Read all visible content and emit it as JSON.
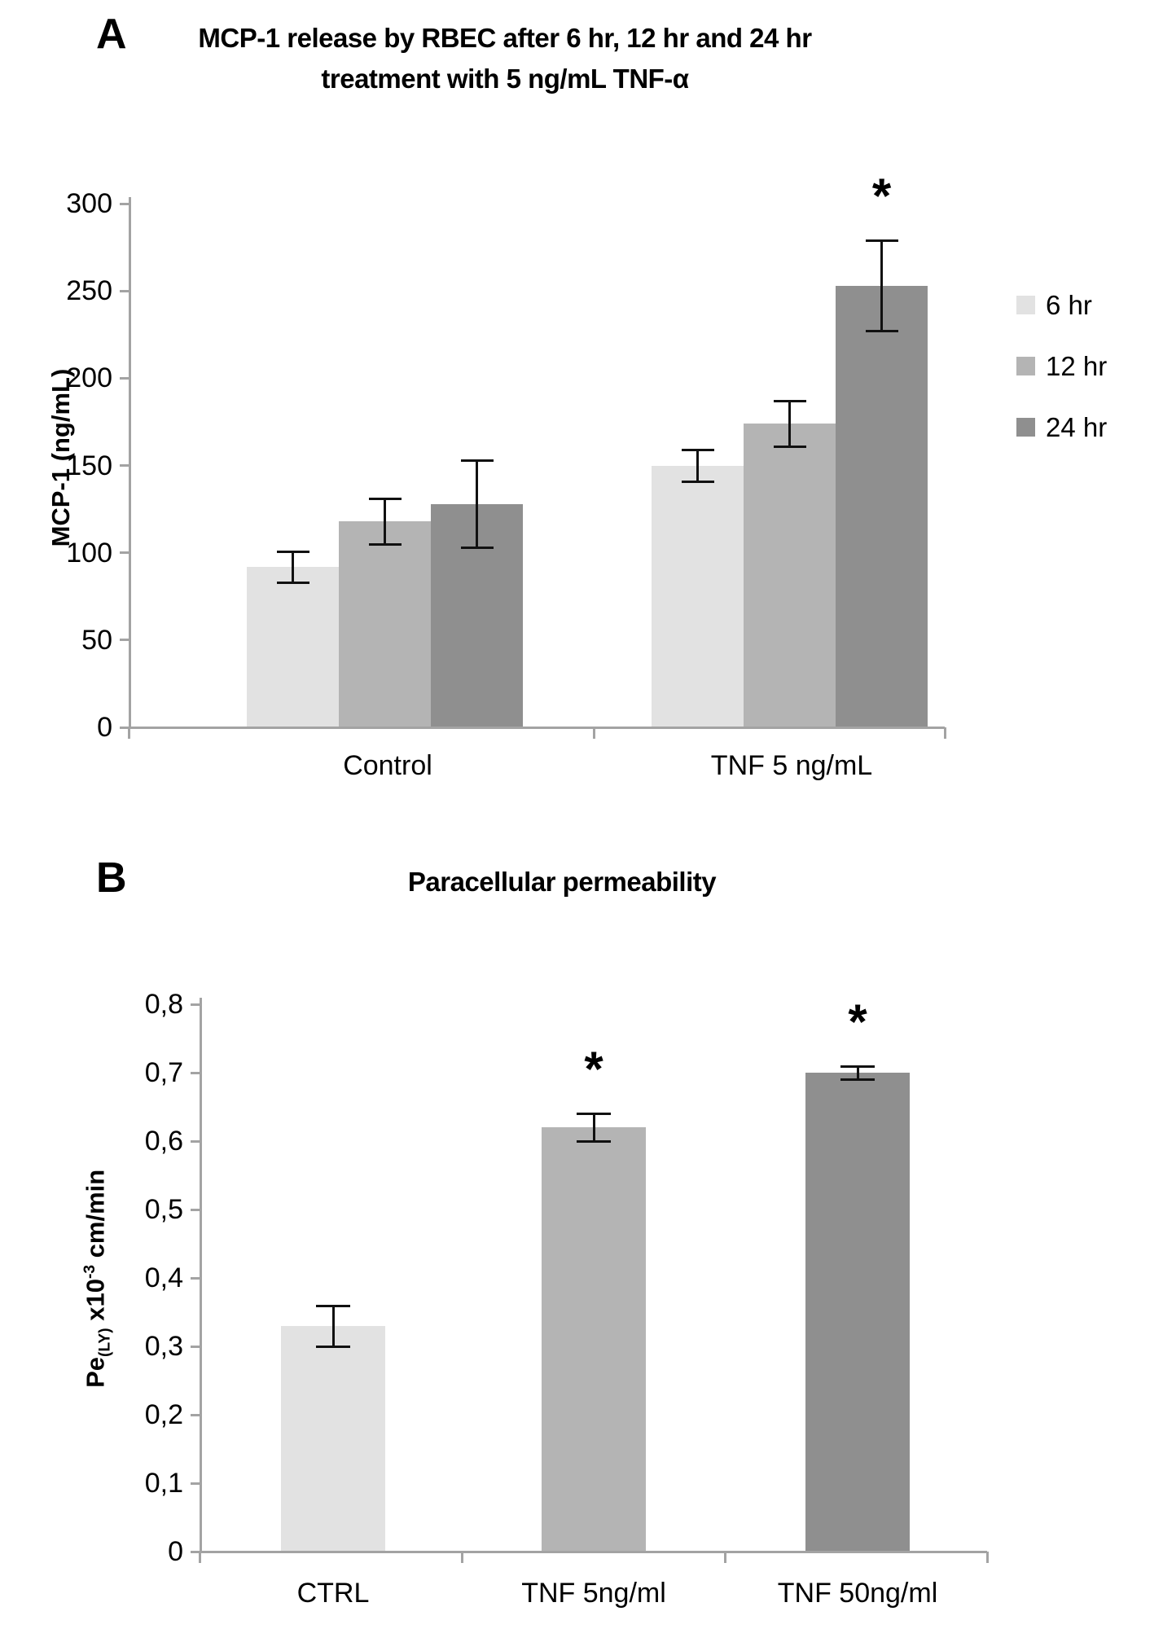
{
  "figure": {
    "background": "#ffffff"
  },
  "colors": {
    "bar_light": "#e2e2e2",
    "bar_medium": "#b4b4b4",
    "bar_dark": "#8f8f8f",
    "axis": "#a3a3a3",
    "error_bar": "#111111",
    "text": "#000000"
  },
  "panel_a": {
    "label": "A",
    "title_line1": "MCP-1 release by RBEC after 6 hr, 12 hr and 24 hr",
    "title_line2": "treatment with 5 ng/mL TNF-α",
    "y_axis_title": "MCP-1 (ng/mL)",
    "x_categories": [
      "Control",
      "TNF 5 ng/mL"
    ],
    "legend": [
      "6 hr",
      "12 hr",
      "24 hr"
    ]
  },
  "panel_b": {
    "label": "B",
    "title": "Paracellular permeability",
    "y_axis_title_parts": {
      "base": "Pe",
      "subscript": "(LY)",
      "mid": " x10",
      "superscript": "-3",
      "end": " cm/min"
    },
    "x_categories": [
      "CTRL",
      "TNF 5ng/ml",
      "TNF 50ng/ml"
    ]
  },
  "chart_data": [
    {
      "type": "bar",
      "panel": "A",
      "title": "MCP-1 release by RBEC after 6 hr, 12 hr and 24 hr treatment with 5 ng/mL TNF-α",
      "categories": [
        "Control",
        "TNF 5 ng/mL"
      ],
      "series": [
        {
          "name": "6 hr",
          "color": "#e2e2e2",
          "values": [
            92,
            150
          ],
          "errors": [
            9,
            9
          ]
        },
        {
          "name": "12 hr",
          "color": "#b4b4b4",
          "values": [
            118,
            174
          ],
          "errors": [
            13,
            13
          ]
        },
        {
          "name": "24 hr",
          "color": "#8f8f8f",
          "values": [
            128,
            253
          ],
          "errors": [
            25,
            26
          ]
        }
      ],
      "significance": [
        {
          "category": "TNF 5 ng/mL",
          "series": "24 hr",
          "marker": "*"
        }
      ],
      "xlabel": "",
      "ylabel": "MCP-1 (ng/mL)",
      "ylim": [
        0,
        300
      ],
      "ytick_step": 50,
      "ytick_labels": [
        "0",
        "50",
        "100",
        "150",
        "200",
        "250",
        "300"
      ],
      "grid": false,
      "legend_position": "right",
      "error_bars": true
    },
    {
      "type": "bar",
      "panel": "B",
      "title": "Paracellular permeability",
      "categories": [
        "CTRL",
        "TNF 5ng/ml",
        "TNF 50ng/ml"
      ],
      "values": [
        0.33,
        0.62,
        0.7
      ],
      "errors": [
        0.03,
        0.02,
        0.01
      ],
      "bar_colors": [
        "#e2e2e2",
        "#b4b4b4",
        "#8f8f8f"
      ],
      "significance": [
        {
          "category": "TNF 5ng/ml",
          "marker": "*"
        },
        {
          "category": "TNF 50ng/ml",
          "marker": "*"
        }
      ],
      "xlabel": "",
      "ylabel": "Pe(LY) x10-3 cm/min",
      "ylim": [
        0,
        0.8
      ],
      "ytick_step": 0.1,
      "decimal_separator": ",",
      "ytick_labels": [
        "0",
        "0,1",
        "0,2",
        "0,3",
        "0,4",
        "0,5",
        "0,6",
        "0,7",
        "0,8"
      ],
      "grid": false,
      "legend_position": "none",
      "error_bars": true
    }
  ]
}
